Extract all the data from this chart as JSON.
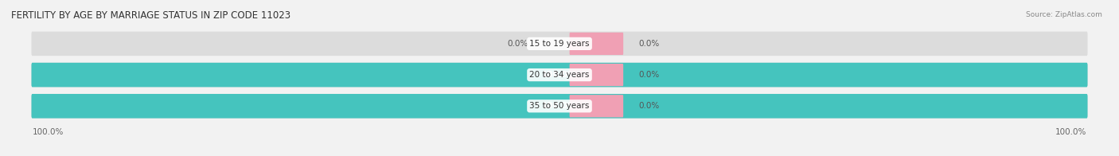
{
  "title": "FERTILITY BY AGE BY MARRIAGE STATUS IN ZIP CODE 11023",
  "source": "Source: ZipAtlas.com",
  "categories": [
    "15 to 19 years",
    "20 to 34 years",
    "35 to 50 years"
  ],
  "married_values": [
    0.0,
    100.0,
    100.0
  ],
  "unmarried_values": [
    0.0,
    0.0,
    0.0
  ],
  "married_color": "#45c4be",
  "unmarried_color": "#f0a0b4",
  "bg_left_color": "#dcdcdc",
  "bg_right_color": "#ebebeb",
  "bar_height": 0.62,
  "title_fontsize": 8.5,
  "label_fontsize": 7.5,
  "tick_fontsize": 7.5,
  "background_color": "#f2f2f2",
  "value_color_on_bar": "#ffffff",
  "value_color_off_bar": "#555555",
  "category_fontsize": 7.5
}
